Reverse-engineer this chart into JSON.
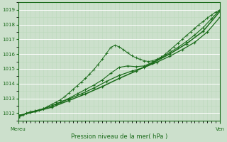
{
  "xlabel": "Pression niveau de la mer( hPa )",
  "xlim": [
    0,
    96
  ],
  "ylim": [
    1011.5,
    1019.5
  ],
  "yticks": [
    1012,
    1013,
    1014,
    1015,
    1016,
    1017,
    1018,
    1019
  ],
  "x_label_left": "Mereu",
  "x_label_right": "Ven",
  "bg_color": "#cce0cc",
  "grid_color_major": "#ffffff",
  "grid_color_minor": "#bbdabb",
  "line_color": "#1a6b1a",
  "line1_x": [
    0,
    2,
    4,
    6,
    8,
    10,
    12,
    14,
    16,
    18,
    20,
    22,
    24,
    26,
    28,
    30,
    32,
    34,
    36,
    38,
    40,
    42,
    44,
    46,
    48,
    50,
    52,
    54,
    56,
    58,
    60,
    62,
    64,
    66,
    68,
    70,
    72,
    74,
    76,
    78,
    80,
    82,
    84,
    86,
    88,
    90,
    92,
    94,
    96
  ],
  "line1_y": [
    1011.7,
    1011.85,
    1012.0,
    1012.1,
    1012.15,
    1012.2,
    1012.3,
    1012.45,
    1012.6,
    1012.75,
    1012.9,
    1013.1,
    1013.35,
    1013.6,
    1013.85,
    1014.1,
    1014.35,
    1014.65,
    1014.95,
    1015.3,
    1015.65,
    1016.05,
    1016.45,
    1016.6,
    1016.5,
    1016.3,
    1016.1,
    1015.9,
    1015.75,
    1015.65,
    1015.55,
    1015.5,
    1015.55,
    1015.65,
    1015.8,
    1016.0,
    1016.25,
    1016.5,
    1016.75,
    1017.0,
    1017.25,
    1017.5,
    1017.75,
    1018.0,
    1018.2,
    1018.45,
    1018.65,
    1018.85,
    1019.0
  ],
  "line2_x": [
    0,
    4,
    8,
    12,
    16,
    20,
    24,
    28,
    32,
    36,
    40,
    44,
    48,
    52,
    56,
    60,
    64,
    68,
    72,
    76,
    80,
    84,
    88,
    92,
    96
  ],
  "line2_y": [
    1011.75,
    1012.0,
    1012.15,
    1012.3,
    1012.5,
    1012.75,
    1013.0,
    1013.3,
    1013.6,
    1013.9,
    1014.25,
    1014.7,
    1015.1,
    1015.2,
    1015.15,
    1015.2,
    1015.45,
    1015.75,
    1016.1,
    1016.45,
    1016.85,
    1017.3,
    1017.8,
    1018.4,
    1019.0
  ],
  "line3_x": [
    0,
    6,
    12,
    18,
    24,
    30,
    36,
    42,
    48,
    54,
    60,
    66,
    72,
    78,
    84,
    90,
    96
  ],
  "line3_y": [
    1011.8,
    1012.05,
    1012.3,
    1012.6,
    1012.95,
    1013.3,
    1013.7,
    1014.15,
    1014.55,
    1014.85,
    1015.1,
    1015.45,
    1015.85,
    1016.3,
    1016.8,
    1017.5,
    1018.5
  ],
  "line4_x": [
    0,
    8,
    16,
    24,
    32,
    40,
    48,
    56,
    64,
    72,
    80,
    88,
    96
  ],
  "line4_y": [
    1011.85,
    1012.1,
    1012.4,
    1012.85,
    1013.3,
    1013.8,
    1014.35,
    1014.85,
    1015.4,
    1016.0,
    1016.7,
    1017.55,
    1018.9
  ]
}
